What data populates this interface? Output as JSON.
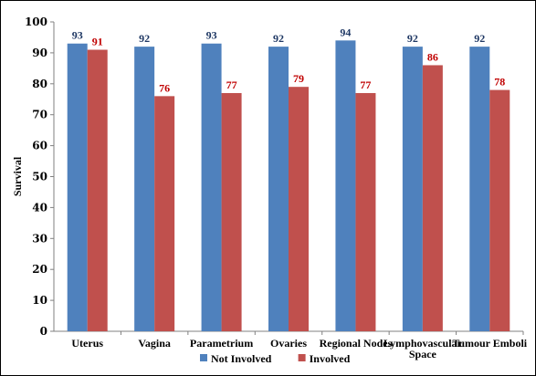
{
  "chart_data": {
    "type": "bar",
    "title": "",
    "xlabel": "",
    "ylabel": "Survival",
    "ylim": [
      0,
      100
    ],
    "yticks": [
      0,
      10,
      20,
      30,
      40,
      50,
      60,
      70,
      80,
      90,
      100
    ],
    "grid": false,
    "legend_position": "bottom",
    "categories": [
      [
        "Uterus"
      ],
      [
        "Vagina"
      ],
      [
        "Parametrium"
      ],
      [
        "Ovaries"
      ],
      [
        "Regional Nodes"
      ],
      [
        "Lymphovascular",
        "Space"
      ],
      [
        "Tumour Emboli"
      ]
    ],
    "series": [
      {
        "name": "Not Involved",
        "color": "#4f81bd",
        "label_color": "#1f3864",
        "values": [
          93,
          92,
          93,
          92,
          94,
          92,
          92
        ]
      },
      {
        "name": "Involved",
        "color": "#c0504d",
        "label_color": "#c00000",
        "values": [
          91,
          76,
          77,
          79,
          77,
          86,
          78
        ]
      }
    ]
  }
}
